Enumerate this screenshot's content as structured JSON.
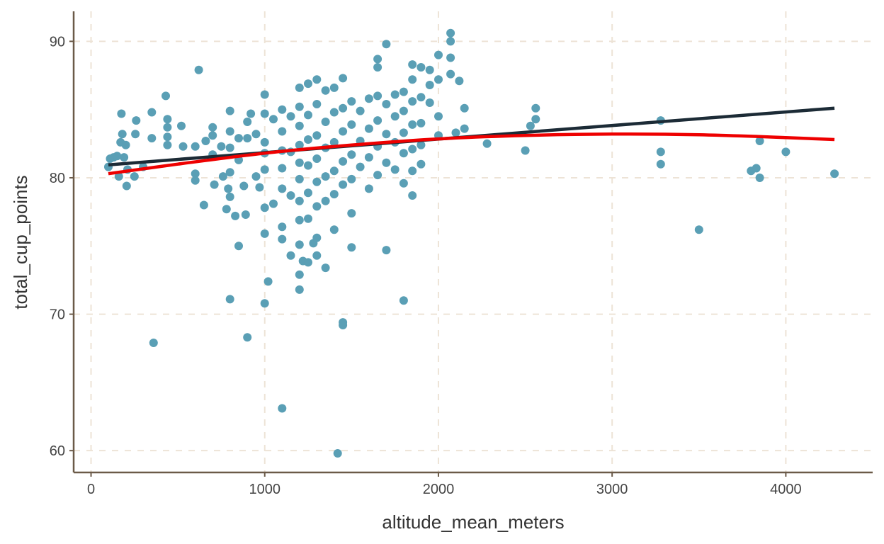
{
  "chart_data": {
    "type": "scatter",
    "title": "",
    "xlabel": "altitude_mean_meters",
    "ylabel": "total_cup_points",
    "xlim": [
      -100,
      4500
    ],
    "ylim": [
      58.4,
      92.2
    ],
    "x_ticks": [
      0,
      1000,
      2000,
      3000,
      4000
    ],
    "x_tick_labels": [
      "0",
      "1000",
      "2000",
      "3000",
      "4000"
    ],
    "y_ticks": [
      60,
      70,
      80,
      90
    ],
    "y_tick_labels": [
      "60",
      "70",
      "80",
      "90"
    ],
    "grid": true,
    "colors": {
      "points": "#5a9fb5",
      "linear_fit": "#1c2b36",
      "poly_fit": "#ee0000",
      "grid": "#ede3d6",
      "axis": "#6b5a48"
    },
    "series": [
      {
        "name": "observations",
        "type": "scatter",
        "points": [
          [
            100,
            80.8
          ],
          [
            110,
            81.4
          ],
          [
            130,
            81.5
          ],
          [
            150,
            81.6
          ],
          [
            160,
            80.1
          ],
          [
            170,
            82.6
          ],
          [
            175,
            84.7
          ],
          [
            180,
            83.2
          ],
          [
            190,
            81.5
          ],
          [
            200,
            82.4
          ],
          [
            205,
            79.4
          ],
          [
            210,
            80.6
          ],
          [
            250,
            80.1
          ],
          [
            255,
            83.2
          ],
          [
            260,
            84.2
          ],
          [
            300,
            80.8
          ],
          [
            350,
            84.8
          ],
          [
            350,
            82.9
          ],
          [
            360,
            67.9
          ],
          [
            430,
            86.0
          ],
          [
            440,
            84.3
          ],
          [
            440,
            83.7
          ],
          [
            440,
            83.0
          ],
          [
            440,
            82.4
          ],
          [
            520,
            83.8
          ],
          [
            530,
            82.3
          ],
          [
            600,
            82.3
          ],
          [
            600,
            80.3
          ],
          [
            600,
            79.8
          ],
          [
            620,
            87.9
          ],
          [
            650,
            78.0
          ],
          [
            660,
            82.7
          ],
          [
            700,
            83.7
          ],
          [
            700,
            83.1
          ],
          [
            700,
            81.7
          ],
          [
            710,
            79.5
          ],
          [
            750,
            82.3
          ],
          [
            760,
            80.1
          ],
          [
            780,
            77.7
          ],
          [
            790,
            79.2
          ],
          [
            800,
            84.9
          ],
          [
            800,
            83.4
          ],
          [
            800,
            82.2
          ],
          [
            800,
            80.4
          ],
          [
            800,
            78.6
          ],
          [
            800,
            71.1
          ],
          [
            830,
            77.2
          ],
          [
            850,
            82.9
          ],
          [
            850,
            81.3
          ],
          [
            850,
            75.0
          ],
          [
            880,
            79.4
          ],
          [
            890,
            77.3
          ],
          [
            900,
            68.3
          ],
          [
            900,
            84.1
          ],
          [
            900,
            82.9
          ],
          [
            920,
            84.7
          ],
          [
            950,
            83.2
          ],
          [
            950,
            80.1
          ],
          [
            970,
            79.3
          ],
          [
            1000,
            86.1
          ],
          [
            1000,
            84.7
          ],
          [
            1000,
            82.6
          ],
          [
            1000,
            81.8
          ],
          [
            1000,
            80.6
          ],
          [
            1000,
            77.8
          ],
          [
            1000,
            75.9
          ],
          [
            1000,
            70.8
          ],
          [
            1020,
            72.4
          ],
          [
            1050,
            78.1
          ],
          [
            1050,
            84.3
          ],
          [
            1100,
            85.0
          ],
          [
            1100,
            83.4
          ],
          [
            1100,
            82.0
          ],
          [
            1100,
            80.7
          ],
          [
            1100,
            79.2
          ],
          [
            1100,
            76.4
          ],
          [
            1100,
            75.5
          ],
          [
            1100,
            63.1
          ],
          [
            1150,
            84.5
          ],
          [
            1150,
            81.9
          ],
          [
            1150,
            78.7
          ],
          [
            1150,
            74.3
          ],
          [
            1200,
            86.6
          ],
          [
            1200,
            85.2
          ],
          [
            1200,
            83.8
          ],
          [
            1200,
            82.4
          ],
          [
            1200,
            81.1
          ],
          [
            1200,
            79.9
          ],
          [
            1200,
            78.3
          ],
          [
            1200,
            76.9
          ],
          [
            1200,
            75.1
          ],
          [
            1200,
            72.9
          ],
          [
            1200,
            71.8
          ],
          [
            1220,
            73.9
          ],
          [
            1250,
            86.9
          ],
          [
            1250,
            84.6
          ],
          [
            1250,
            82.8
          ],
          [
            1250,
            80.9
          ],
          [
            1250,
            78.9
          ],
          [
            1250,
            77.0
          ],
          [
            1250,
            73.8
          ],
          [
            1280,
            75.2
          ],
          [
            1300,
            87.2
          ],
          [
            1300,
            85.4
          ],
          [
            1300,
            83.1
          ],
          [
            1300,
            81.4
          ],
          [
            1300,
            79.7
          ],
          [
            1300,
            77.9
          ],
          [
            1300,
            75.6
          ],
          [
            1300,
            74.3
          ],
          [
            1350,
            86.4
          ],
          [
            1350,
            84.1
          ],
          [
            1350,
            82.2
          ],
          [
            1350,
            80.1
          ],
          [
            1350,
            78.3
          ],
          [
            1350,
            73.4
          ],
          [
            1400,
            86.6
          ],
          [
            1400,
            84.8
          ],
          [
            1400,
            82.6
          ],
          [
            1400,
            80.5
          ],
          [
            1400,
            78.8
          ],
          [
            1400,
            76.2
          ],
          [
            1420,
            59.8
          ],
          [
            1450,
            87.3
          ],
          [
            1450,
            85.1
          ],
          [
            1450,
            83.4
          ],
          [
            1450,
            81.2
          ],
          [
            1450,
            79.5
          ],
          [
            1450,
            69.2
          ],
          [
            1450,
            69.4
          ],
          [
            1500,
            85.6
          ],
          [
            1500,
            83.9
          ],
          [
            1500,
            81.7
          ],
          [
            1500,
            79.9
          ],
          [
            1500,
            77.4
          ],
          [
            1500,
            74.9
          ],
          [
            1550,
            84.9
          ],
          [
            1550,
            82.7
          ],
          [
            1550,
            80.8
          ],
          [
            1600,
            85.8
          ],
          [
            1600,
            83.6
          ],
          [
            1600,
            81.5
          ],
          [
            1600,
            79.2
          ],
          [
            1650,
            88.7
          ],
          [
            1650,
            88.1
          ],
          [
            1650,
            86.0
          ],
          [
            1650,
            84.2
          ],
          [
            1650,
            82.3
          ],
          [
            1650,
            80.2
          ],
          [
            1700,
            89.8
          ],
          [
            1700,
            85.4
          ],
          [
            1700,
            83.2
          ],
          [
            1700,
            81.1
          ],
          [
            1700,
            74.7
          ],
          [
            1750,
            86.1
          ],
          [
            1750,
            84.5
          ],
          [
            1750,
            82.6
          ],
          [
            1750,
            80.6
          ],
          [
            1800,
            86.3
          ],
          [
            1800,
            84.9
          ],
          [
            1800,
            83.3
          ],
          [
            1800,
            81.8
          ],
          [
            1800,
            79.6
          ],
          [
            1800,
            71.0
          ],
          [
            1850,
            88.3
          ],
          [
            1850,
            87.2
          ],
          [
            1850,
            85.6
          ],
          [
            1850,
            83.9
          ],
          [
            1850,
            82.1
          ],
          [
            1850,
            80.5
          ],
          [
            1850,
            78.7
          ],
          [
            1900,
            88.1
          ],
          [
            1900,
            85.9
          ],
          [
            1900,
            84.0
          ],
          [
            1900,
            82.4
          ],
          [
            1900,
            81.0
          ],
          [
            1950,
            87.9
          ],
          [
            1950,
            86.8
          ],
          [
            1950,
            85.5
          ],
          [
            2000,
            89.0
          ],
          [
            2000,
            87.2
          ],
          [
            2000,
            84.5
          ],
          [
            2000,
            83.1
          ],
          [
            2070,
            90.6
          ],
          [
            2070,
            90.0
          ],
          [
            2070,
            88.8
          ],
          [
            2070,
            87.6
          ],
          [
            2100,
            83.3
          ],
          [
            2120,
            87.1
          ],
          [
            2150,
            85.1
          ],
          [
            2150,
            83.6
          ],
          [
            2280,
            82.5
          ],
          [
            2500,
            82.0
          ],
          [
            2530,
            83.8
          ],
          [
            2560,
            85.1
          ],
          [
            2560,
            84.3
          ],
          [
            3280,
            84.2
          ],
          [
            3280,
            81.9
          ],
          [
            3280,
            81.0
          ],
          [
            3500,
            76.2
          ],
          [
            3800,
            80.5
          ],
          [
            3830,
            80.7
          ],
          [
            3850,
            80.0
          ],
          [
            3850,
            82.7
          ],
          [
            4000,
            81.9
          ],
          [
            4280,
            80.3
          ]
        ]
      },
      {
        "name": "linear fit",
        "type": "line",
        "x": [
          100,
          4280
        ],
        "y": [
          80.95,
          85.1
        ]
      },
      {
        "name": "quadratic fit",
        "type": "line",
        "x": [
          100,
          500,
          1000,
          1500,
          2000,
          2500,
          3000,
          3500,
          4000,
          4280
        ],
        "y": [
          80.3,
          81.0,
          81.8,
          82.4,
          82.85,
          83.1,
          83.2,
          83.15,
          82.95,
          82.8
        ]
      }
    ]
  }
}
